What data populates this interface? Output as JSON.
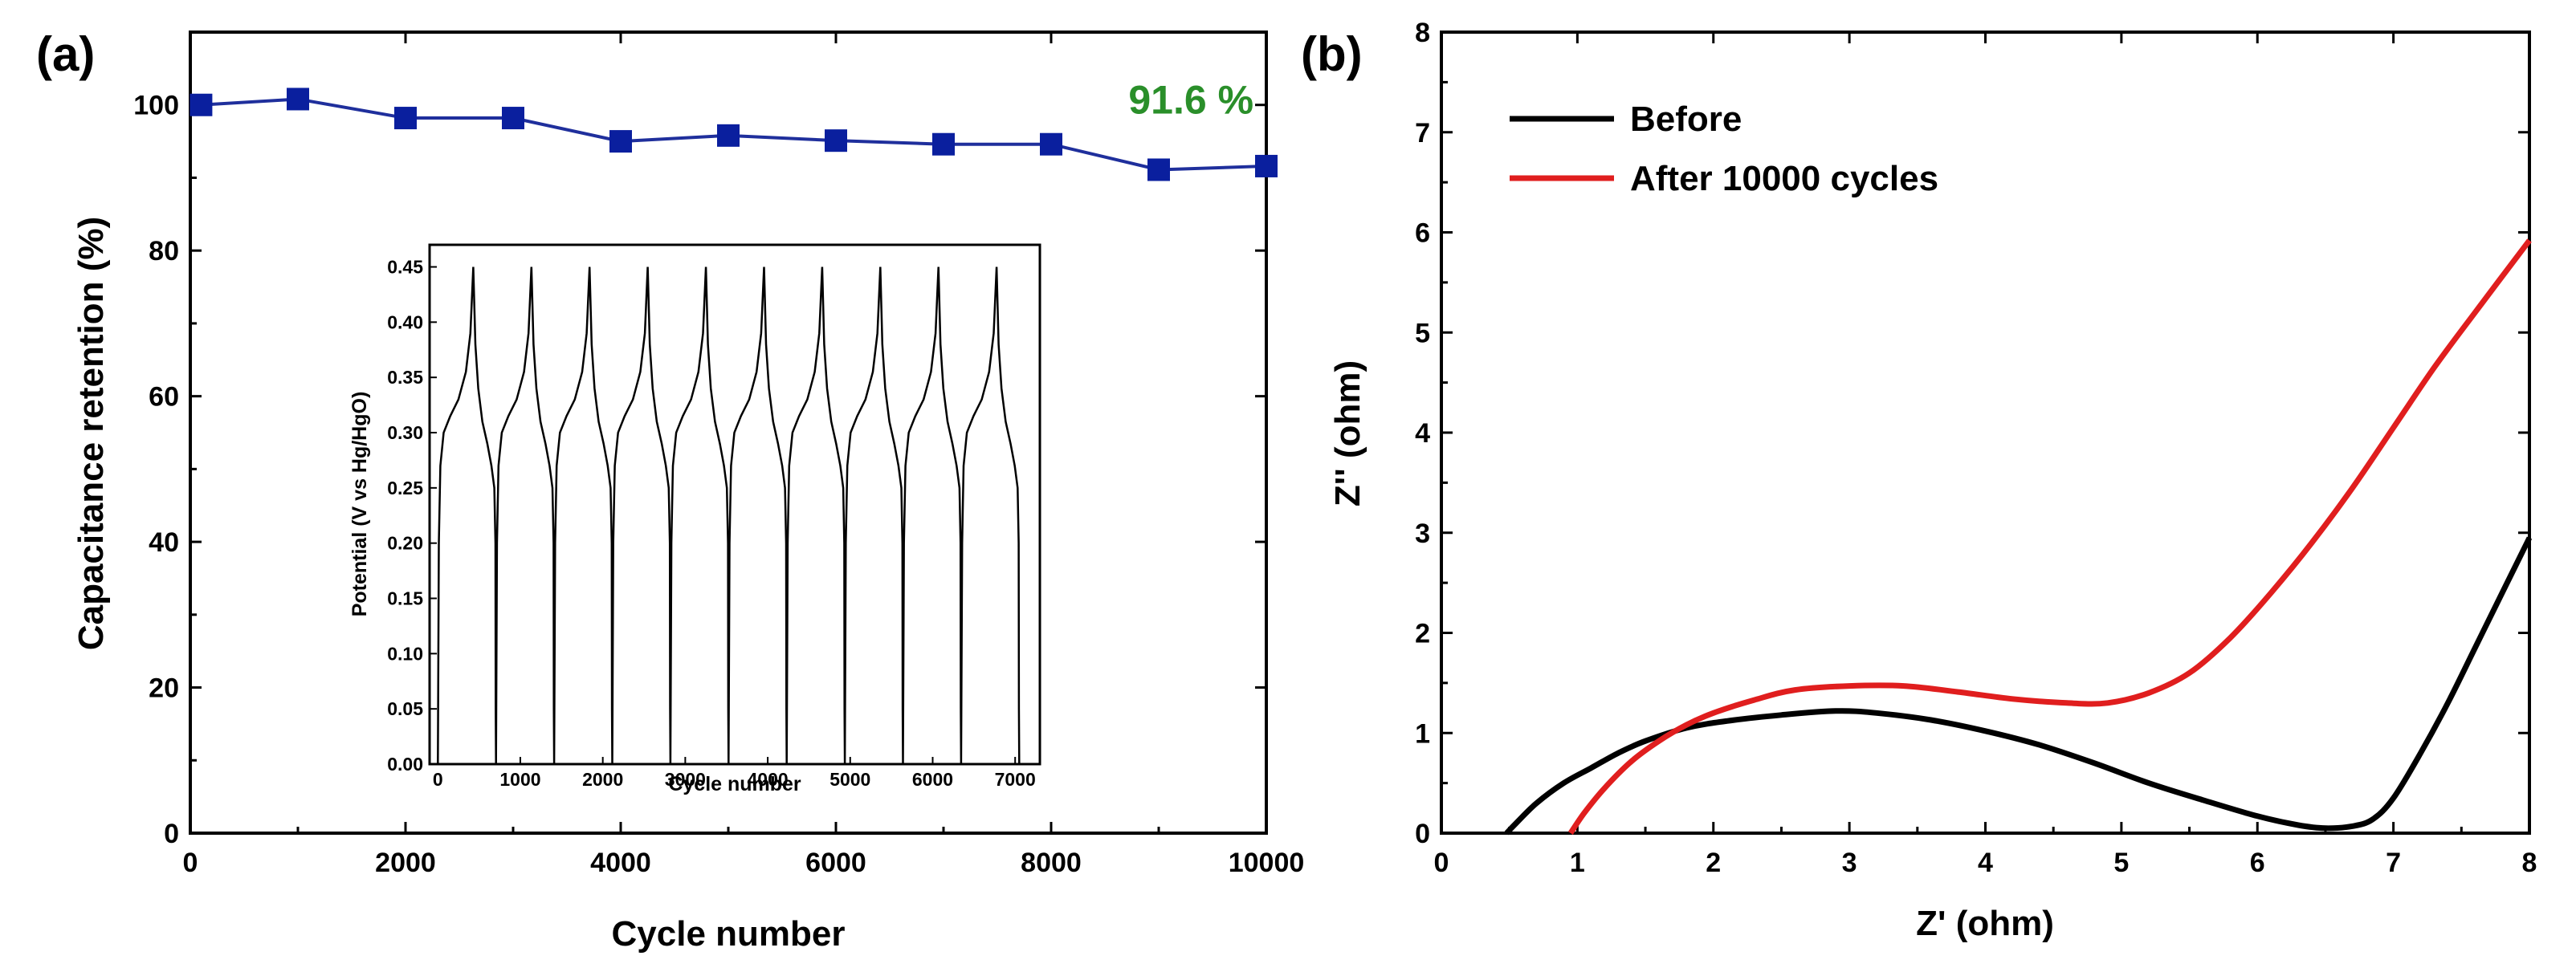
{
  "chart_data": [
    {
      "panel": "(a)",
      "type": "line",
      "xlabel": "Cycle number",
      "ylabel": "Capacitance retention (%)",
      "xlim": [
        0,
        10000
      ],
      "ylim": [
        0,
        110
      ],
      "xticks": [
        0,
        2000,
        4000,
        6000,
        8000,
        10000
      ],
      "yticks": [
        0,
        20,
        40,
        60,
        80,
        100
      ],
      "series": [
        {
          "name": "Capacitance retention",
          "color": "#1f2f9c",
          "marker_color": "#0a1f9e",
          "x": [
            100,
            1000,
            2000,
            3000,
            4000,
            5000,
            6000,
            7000,
            8000,
            9000,
            10000
          ],
          "y": [
            100.0,
            100.8,
            98.2,
            98.2,
            95.0,
            95.8,
            95.1,
            94.6,
            94.6,
            91.1,
            91.6
          ]
        }
      ],
      "annotation": {
        "text": "91.6 %",
        "color": "#2a8f2a",
        "x": 9300,
        "y": 98.8
      },
      "inset": {
        "type": "line",
        "xlabel": "Cycle number",
        "ylabel": "Potential (V vs Hg/HgO)",
        "xlim": [
          -100,
          7300
        ],
        "ylim": [
          0,
          0.47
        ],
        "xticks": [
          0,
          1000,
          2000,
          3000,
          4000,
          5000,
          6000,
          7000
        ],
        "yticks": [
          0.0,
          0.05,
          0.1,
          0.15,
          0.2,
          0.25,
          0.3,
          0.35,
          0.4,
          0.45
        ],
        "ytick_labels": [
          "0.00",
          "0.05",
          "0.10",
          "0.15",
          "0.20",
          "0.25",
          "0.30",
          "0.35",
          "0.40",
          "0.45"
        ],
        "cycles": 10,
        "cycle_start": 0,
        "cycle_period": 705,
        "peak_offset": 430,
        "v_min": 0.0,
        "v_max": 0.45
      }
    },
    {
      "panel": "(b)",
      "type": "line",
      "xlabel": "Z' (ohm)",
      "ylabel": "Z'' (ohm)",
      "xlim": [
        0,
        8
      ],
      "ylim": [
        0,
        8
      ],
      "xticks": [
        0,
        1,
        2,
        3,
        4,
        5,
        6,
        7,
        8
      ],
      "yticks": [
        0,
        1,
        2,
        3,
        4,
        5,
        6,
        7,
        8
      ],
      "legend_position": "top-left",
      "series": [
        {
          "name": "Before",
          "color": "#000000",
          "x": [
            0.48,
            0.55,
            0.7,
            0.9,
            1.1,
            1.3,
            1.5,
            1.8,
            2.1,
            2.5,
            2.9,
            3.2,
            3.6,
            4.0,
            4.4,
            4.8,
            5.2,
            5.6,
            6.0,
            6.3,
            6.5,
            6.7,
            6.85,
            7.0,
            7.2,
            7.4,
            7.6,
            7.8,
            8.0
          ],
          "y": [
            0.0,
            0.1,
            0.3,
            0.5,
            0.65,
            0.8,
            0.92,
            1.05,
            1.12,
            1.18,
            1.22,
            1.2,
            1.13,
            1.02,
            0.88,
            0.7,
            0.5,
            0.33,
            0.17,
            0.08,
            0.05,
            0.07,
            0.14,
            0.35,
            0.8,
            1.3,
            1.85,
            2.4,
            2.95
          ]
        },
        {
          "name": "After 10000 cycles",
          "color": "#e01e1e",
          "x": [
            0.95,
            1.05,
            1.2,
            1.4,
            1.6,
            1.8,
            2.0,
            2.3,
            2.6,
            3.0,
            3.4,
            3.8,
            4.2,
            4.6,
            4.9,
            5.2,
            5.5,
            5.8,
            6.1,
            6.4,
            6.7,
            7.0,
            7.3,
            7.6,
            8.0
          ],
          "y": [
            0.0,
            0.2,
            0.45,
            0.72,
            0.92,
            1.08,
            1.2,
            1.33,
            1.43,
            1.47,
            1.47,
            1.41,
            1.34,
            1.3,
            1.3,
            1.4,
            1.6,
            1.95,
            2.4,
            2.9,
            3.45,
            4.05,
            4.65,
            5.2,
            5.92
          ]
        }
      ]
    }
  ]
}
